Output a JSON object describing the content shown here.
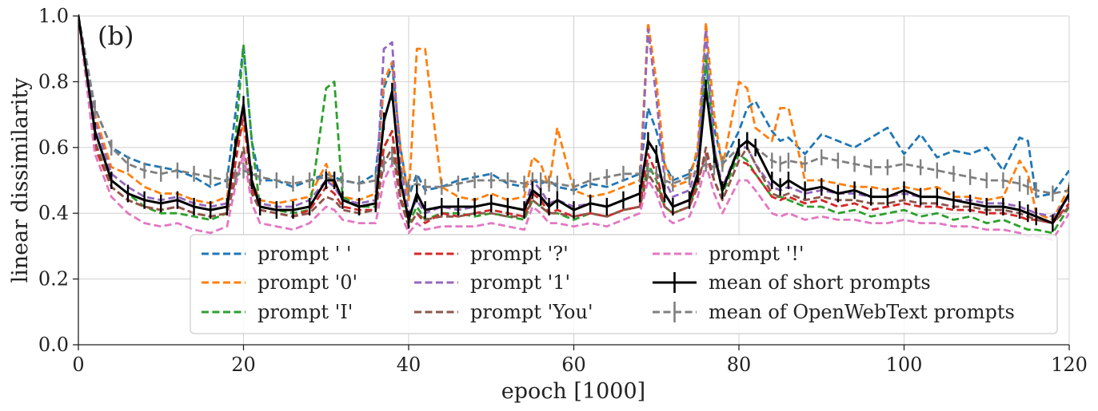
{
  "chart_data": {
    "type": "line",
    "panel_label": "(b)",
    "xlabel": "epoch [1000]",
    "ylabel": "linear dissimilarity",
    "xlim": [
      0,
      120
    ],
    "ylim": [
      0.0,
      1.0
    ],
    "xticks": [
      "0",
      "20",
      "40",
      "60",
      "80",
      "100",
      "120"
    ],
    "yticks": [
      "0.0",
      "0.2",
      "0.4",
      "0.6",
      "0.8",
      "1.0"
    ],
    "grid": true,
    "legend_position": "lower-center",
    "colors": {
      "blue": "#1f77b4",
      "orange": "#ff7f0e",
      "green": "#2ca02c",
      "red": "#d62728",
      "purple": "#9467bd",
      "brown": "#8c564b",
      "pink": "#e377c2",
      "black": "#000000",
      "gray": "#7f7f7f"
    },
    "x": [
      0,
      2,
      4,
      6,
      8,
      10,
      12,
      14,
      16,
      18,
      19,
      20,
      21,
      22,
      24,
      26,
      28,
      30,
      31,
      32,
      34,
      36,
      37,
      38,
      39,
      40,
      41,
      42,
      44,
      46,
      48,
      50,
      52,
      54,
      55,
      56,
      57,
      58,
      60,
      62,
      64,
      66,
      68,
      69,
      70,
      71,
      72,
      74,
      75,
      76,
      77,
      78,
      80,
      81,
      82,
      84,
      85,
      86,
      88,
      90,
      92,
      94,
      96,
      98,
      100,
      102,
      104,
      106,
      108,
      110,
      112,
      114,
      115,
      116,
      118,
      120
    ],
    "series": [
      {
        "name": "prompt ' '",
        "color": "#1f77b4",
        "style": "dashed",
        "values": [
          1.0,
          0.72,
          0.6,
          0.57,
          0.55,
          0.54,
          0.53,
          0.51,
          0.48,
          0.5,
          0.7,
          0.91,
          0.62,
          0.5,
          0.5,
          0.48,
          0.5,
          0.52,
          0.51,
          0.5,
          0.49,
          0.52,
          0.78,
          0.85,
          0.6,
          0.45,
          0.52,
          0.47,
          0.48,
          0.5,
          0.51,
          0.52,
          0.49,
          0.48,
          0.5,
          0.49,
          0.5,
          0.48,
          0.47,
          0.49,
          0.48,
          0.5,
          0.52,
          0.72,
          0.65,
          0.55,
          0.5,
          0.52,
          0.58,
          0.85,
          0.66,
          0.55,
          0.65,
          0.72,
          0.74,
          0.65,
          0.62,
          0.63,
          0.58,
          0.64,
          0.62,
          0.6,
          0.63,
          0.66,
          0.58,
          0.64,
          0.57,
          0.59,
          0.58,
          0.6,
          0.53,
          0.63,
          0.62,
          0.45,
          0.46,
          0.53
        ]
      },
      {
        "name": "prompt '0'",
        "color": "#ff7f0e",
        "style": "dashed",
        "values": [
          1.0,
          0.7,
          0.54,
          0.52,
          0.48,
          0.46,
          0.46,
          0.44,
          0.43,
          0.45,
          0.6,
          0.67,
          0.5,
          0.44,
          0.43,
          0.44,
          0.45,
          0.55,
          0.48,
          0.45,
          0.44,
          0.46,
          0.8,
          0.86,
          0.6,
          0.44,
          0.9,
          0.9,
          0.48,
          0.45,
          0.44,
          0.46,
          0.44,
          0.45,
          0.57,
          0.55,
          0.48,
          0.66,
          0.47,
          0.45,
          0.46,
          0.48,
          0.5,
          0.98,
          0.8,
          0.55,
          0.48,
          0.5,
          0.6,
          0.98,
          0.7,
          0.54,
          0.8,
          0.78,
          0.66,
          0.62,
          0.72,
          0.72,
          0.5,
          0.5,
          0.49,
          0.48,
          0.48,
          0.47,
          0.48,
          0.47,
          0.48,
          0.45,
          0.45,
          0.44,
          0.45,
          0.56,
          0.52,
          0.4,
          0.38,
          0.48
        ]
      },
      {
        "name": "prompt 'I'",
        "color": "#2ca02c",
        "style": "dashed",
        "values": [
          1.0,
          0.65,
          0.5,
          0.46,
          0.42,
          0.4,
          0.4,
          0.39,
          0.38,
          0.4,
          0.62,
          0.91,
          0.62,
          0.42,
          0.41,
          0.4,
          0.41,
          0.78,
          0.8,
          0.45,
          0.42,
          0.42,
          0.6,
          0.65,
          0.45,
          0.37,
          0.42,
          0.38,
          0.4,
          0.4,
          0.39,
          0.4,
          0.39,
          0.38,
          0.44,
          0.42,
          0.4,
          0.4,
          0.38,
          0.4,
          0.39,
          0.41,
          0.42,
          0.55,
          0.5,
          0.42,
          0.4,
          0.42,
          0.5,
          0.88,
          0.6,
          0.46,
          0.58,
          0.56,
          0.52,
          0.45,
          0.45,
          0.44,
          0.42,
          0.42,
          0.4,
          0.41,
          0.39,
          0.4,
          0.41,
          0.39,
          0.4,
          0.38,
          0.39,
          0.37,
          0.38,
          0.36,
          0.35,
          0.35,
          0.34,
          0.42
        ]
      },
      {
        "name": "prompt '?'",
        "color": "#d62728",
        "style": "dashed",
        "values": [
          1.0,
          0.6,
          0.48,
          0.44,
          0.42,
          0.41,
          0.42,
          0.4,
          0.39,
          0.4,
          0.55,
          0.7,
          0.48,
          0.41,
          0.4,
          0.39,
          0.41,
          0.48,
          0.46,
          0.42,
          0.41,
          0.41,
          0.6,
          0.65,
          0.45,
          0.36,
          0.4,
          0.37,
          0.4,
          0.39,
          0.4,
          0.41,
          0.4,
          0.39,
          0.46,
          0.44,
          0.4,
          0.41,
          0.39,
          0.4,
          0.39,
          0.41,
          0.42,
          0.58,
          0.52,
          0.42,
          0.4,
          0.42,
          0.5,
          0.58,
          0.5,
          0.44,
          0.56,
          0.55,
          0.52,
          0.45,
          0.44,
          0.45,
          0.43,
          0.44,
          0.42,
          0.43,
          0.41,
          0.42,
          0.43,
          0.42,
          0.42,
          0.41,
          0.41,
          0.4,
          0.4,
          0.39,
          0.38,
          0.38,
          0.37,
          0.43
        ]
      },
      {
        "name": "prompt '1'",
        "color": "#9467bd",
        "style": "dashed",
        "values": [
          1.0,
          0.68,
          0.52,
          0.48,
          0.45,
          0.44,
          0.45,
          0.43,
          0.42,
          0.43,
          0.6,
          0.72,
          0.5,
          0.43,
          0.42,
          0.42,
          0.44,
          0.5,
          0.48,
          0.44,
          0.43,
          0.44,
          0.9,
          0.92,
          0.55,
          0.4,
          0.44,
          0.4,
          0.42,
          0.41,
          0.42,
          0.43,
          0.42,
          0.41,
          0.5,
          0.47,
          0.43,
          0.44,
          0.42,
          0.43,
          0.42,
          0.44,
          0.46,
          0.96,
          0.75,
          0.5,
          0.45,
          0.47,
          0.55,
          0.96,
          0.6,
          0.48,
          0.6,
          0.6,
          0.55,
          0.48,
          0.47,
          0.48,
          0.46,
          0.47,
          0.46,
          0.46,
          0.45,
          0.45,
          0.46,
          0.45,
          0.45,
          0.44,
          0.44,
          0.43,
          0.43,
          0.42,
          0.41,
          0.4,
          0.39,
          0.45
        ]
      },
      {
        "name": "prompt 'You'",
        "color": "#8c564b",
        "style": "dashed",
        "values": [
          1.0,
          0.62,
          0.48,
          0.44,
          0.42,
          0.41,
          0.42,
          0.4,
          0.39,
          0.4,
          0.5,
          0.6,
          0.46,
          0.41,
          0.4,
          0.39,
          0.4,
          0.45,
          0.44,
          0.41,
          0.4,
          0.41,
          0.55,
          0.6,
          0.44,
          0.36,
          0.4,
          0.38,
          0.39,
          0.39,
          0.4,
          0.4,
          0.39,
          0.39,
          0.44,
          0.42,
          0.4,
          0.4,
          0.39,
          0.4,
          0.39,
          0.41,
          0.42,
          0.52,
          0.48,
          0.42,
          0.4,
          0.42,
          0.48,
          0.6,
          0.5,
          0.44,
          0.56,
          0.6,
          0.55,
          0.46,
          0.45,
          0.46,
          0.44,
          0.45,
          0.44,
          0.44,
          0.43,
          0.43,
          0.44,
          0.43,
          0.43,
          0.42,
          0.42,
          0.41,
          0.41,
          0.4,
          0.39,
          0.38,
          0.37,
          0.42
        ]
      },
      {
        "name": "prompt '!'",
        "color": "#e377c2",
        "style": "dashed",
        "values": [
          1.0,
          0.58,
          0.45,
          0.4,
          0.37,
          0.36,
          0.37,
          0.35,
          0.34,
          0.36,
          0.48,
          0.58,
          0.43,
          0.37,
          0.36,
          0.35,
          0.37,
          0.42,
          0.41,
          0.38,
          0.37,
          0.37,
          0.5,
          0.55,
          0.4,
          0.34,
          0.37,
          0.35,
          0.36,
          0.36,
          0.36,
          0.37,
          0.36,
          0.35,
          0.42,
          0.4,
          0.37,
          0.37,
          0.36,
          0.37,
          0.36,
          0.38,
          0.4,
          0.5,
          0.46,
          0.39,
          0.37,
          0.39,
          0.45,
          0.55,
          0.46,
          0.4,
          0.5,
          0.5,
          0.47,
          0.4,
          0.39,
          0.4,
          0.38,
          0.39,
          0.38,
          0.38,
          0.37,
          0.37,
          0.38,
          0.37,
          0.37,
          0.36,
          0.36,
          0.35,
          0.35,
          0.34,
          0.33,
          0.33,
          0.32,
          0.4
        ]
      }
    ],
    "mean_short": {
      "name": "mean of short prompts",
      "color": "#000000",
      "style": "solid",
      "values": [
        1.0,
        0.65,
        0.5,
        0.46,
        0.44,
        0.43,
        0.44,
        0.42,
        0.41,
        0.42,
        0.6,
        0.73,
        0.5,
        0.42,
        0.41,
        0.41,
        0.42,
        0.5,
        0.5,
        0.44,
        0.42,
        0.43,
        0.68,
        0.77,
        0.5,
        0.38,
        0.46,
        0.41,
        0.42,
        0.42,
        0.42,
        0.43,
        0.42,
        0.41,
        0.47,
        0.45,
        0.42,
        0.44,
        0.41,
        0.43,
        0.42,
        0.44,
        0.46,
        0.62,
        0.58,
        0.46,
        0.42,
        0.44,
        0.52,
        0.78,
        0.58,
        0.47,
        0.6,
        0.62,
        0.6,
        0.5,
        0.48,
        0.5,
        0.47,
        0.48,
        0.46,
        0.47,
        0.45,
        0.45,
        0.47,
        0.45,
        0.45,
        0.44,
        0.43,
        0.42,
        0.42,
        0.41,
        0.4,
        0.39,
        0.37,
        0.46
      ]
    },
    "mean_openwebtext": {
      "name": "mean of OpenWebText prompts",
      "color": "#7f7f7f",
      "style": "dashed",
      "values": [
        1.0,
        0.72,
        0.6,
        0.55,
        0.53,
        0.52,
        0.53,
        0.52,
        0.51,
        0.5,
        0.51,
        0.53,
        0.52,
        0.51,
        0.5,
        0.49,
        0.5,
        0.51,
        0.5,
        0.5,
        0.49,
        0.5,
        0.55,
        0.57,
        0.52,
        0.48,
        0.49,
        0.48,
        0.48,
        0.49,
        0.5,
        0.5,
        0.5,
        0.49,
        0.5,
        0.5,
        0.49,
        0.49,
        0.48,
        0.5,
        0.51,
        0.52,
        0.52,
        0.53,
        0.52,
        0.5,
        0.49,
        0.51,
        0.53,
        0.55,
        0.54,
        0.55,
        0.6,
        0.62,
        0.6,
        0.56,
        0.55,
        0.56,
        0.55,
        0.57,
        0.56,
        0.55,
        0.54,
        0.54,
        0.55,
        0.54,
        0.53,
        0.52,
        0.51,
        0.5,
        0.5,
        0.49,
        0.48,
        0.47,
        0.46,
        0.47
      ]
    },
    "legend": [
      {
        "label": "prompt ' '",
        "color": "#1f77b4",
        "style": "dashed"
      },
      {
        "label": "prompt '0'",
        "color": "#ff7f0e",
        "style": "dashed"
      },
      {
        "label": "prompt 'I'",
        "color": "#2ca02c",
        "style": "dashed"
      },
      {
        "label": "prompt '?'",
        "color": "#d62728",
        "style": "dashed"
      },
      {
        "label": "prompt '1'",
        "color": "#9467bd",
        "style": "dashed"
      },
      {
        "label": "prompt 'You'",
        "color": "#8c564b",
        "style": "dashed"
      },
      {
        "label": "prompt '!'",
        "color": "#e377c2",
        "style": "dashed"
      },
      {
        "label": "mean of short prompts",
        "color": "#000000",
        "style": "errorbar-solid"
      },
      {
        "label": "mean of OpenWebText prompts",
        "color": "#7f7f7f",
        "style": "errorbar-dashed"
      }
    ]
  }
}
